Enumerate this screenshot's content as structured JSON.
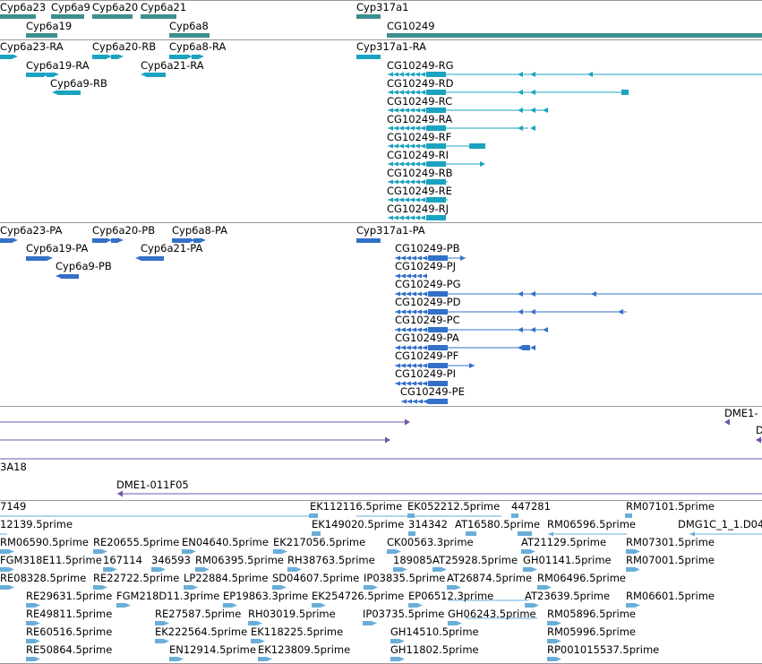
{
  "colors": {
    "gene": "#3f8e8e",
    "mrna": "#1aa3bf",
    "protein": "#3370c8",
    "est": "#7254a8",
    "prime": "#6aaed8",
    "divider": "#9a9a9a"
  },
  "tracks": {
    "genes": {
      "labels": [
        {
          "name": "Cyp6a23",
          "bar": "gene-bar-cyp6a23"
        },
        {
          "name": "Cyp6a9",
          "bar": "gene-bar-cyp6a9"
        },
        {
          "name": "Cyp6a20",
          "bar": "gene-bar-cyp6a20"
        },
        {
          "name": "Cyp6a21",
          "bar": "gene-bar-cyp6a21"
        },
        {
          "name": "Cyp317a1",
          "bar": "gene-bar-cyp317a1"
        },
        {
          "name": "Cyp6a19",
          "bar": "gene-bar-cyp6a19"
        },
        {
          "name": "Cyp6a8",
          "bar": "gene-bar-cyp6a8"
        },
        {
          "name": "CG10249",
          "bar": "gene-bar-cg10249"
        }
      ]
    },
    "transcripts": {
      "labels": [
        "Cyp6a23-RA",
        "Cyp6a20-RB",
        "Cyp6a8-RA",
        "Cyp317a1-RA",
        "Cyp6a19-RA",
        "Cyp6a21-RA",
        "Cyp6a9-RB",
        "CG10249-RG",
        "CG10249-RD",
        "CG10249-RC",
        "CG10249-RA",
        "CG10249-RF",
        "CG10249-RI",
        "CG10249-RB",
        "CG10249-RE",
        "CG10249-RJ"
      ]
    },
    "proteins": {
      "labels": [
        "Cyp6a23-PA",
        "Cyp6a20-PB",
        "Cyp6a8-PA",
        "Cyp317a1-PA",
        "Cyp6a19-PA",
        "Cyp6a21-PA",
        "Cyp6a9-PB",
        "CG10249-PB",
        "CG10249-PJ",
        "CG10249-PG",
        "CG10249-PD",
        "CG10249-PC",
        "CG10249-PA",
        "CG10249-PF",
        "CG10249-PI",
        "CG10249-PE"
      ]
    },
    "est": {
      "labels": [
        "DME1-",
        "D",
        "3A18",
        "DME1-011F05"
      ]
    },
    "cdna": {
      "labels": [
        "7149",
        "EK112116.5prime",
        "EK052212.5prime",
        "447281",
        "RM07101.5prime",
        "12139.5prime",
        "EK149020.5prime",
        "314342",
        "AT16580.5prime",
        "RM06596.5prime",
        "DMG1C_1_1.D04",
        "RM06590.5prime",
        "RE20655.5prime",
        "EN04640.5prime",
        "EK217056.5prime",
        "CK00563.3prime",
        "AT21129.5prime",
        "RM07301.5prime",
        "FGM318E11.5prime",
        "167114",
        "346593",
        "RM06395.5prime",
        "RH38763.5prime",
        "189085",
        "AT25928.5prime",
        "GH01141.5prime",
        "RM07001.5prime",
        "RE08328.5prime",
        "RE22722.5prime",
        "LP22884.5prime",
        "SD04607.5prime",
        "IP03835.5prime",
        "AT26874.5prime",
        "RM06496.5prime",
        "RE29631.5prime",
        "FGM218D11.3prime",
        "EP19863.3prime",
        "EK254726.5prime",
        "EP06512.3prime",
        "AT23639.5prime",
        "RM06601.5prime",
        "RE49811.5prime",
        "RE27587.5prime",
        "RH03019.5prime",
        "IP03735.5prime",
        "GH06243.5prime",
        "RM05896.5prime",
        "RE60516.5prime",
        "EK222564.5prime",
        "EK118225.5prime",
        "GH14510.5prime",
        "RM05996.5prime",
        "RE50864.5prime",
        "EN12914.5prime",
        "EK123809.5prime",
        "GH11802.5prime",
        "RP001015537.5prime"
      ]
    }
  }
}
